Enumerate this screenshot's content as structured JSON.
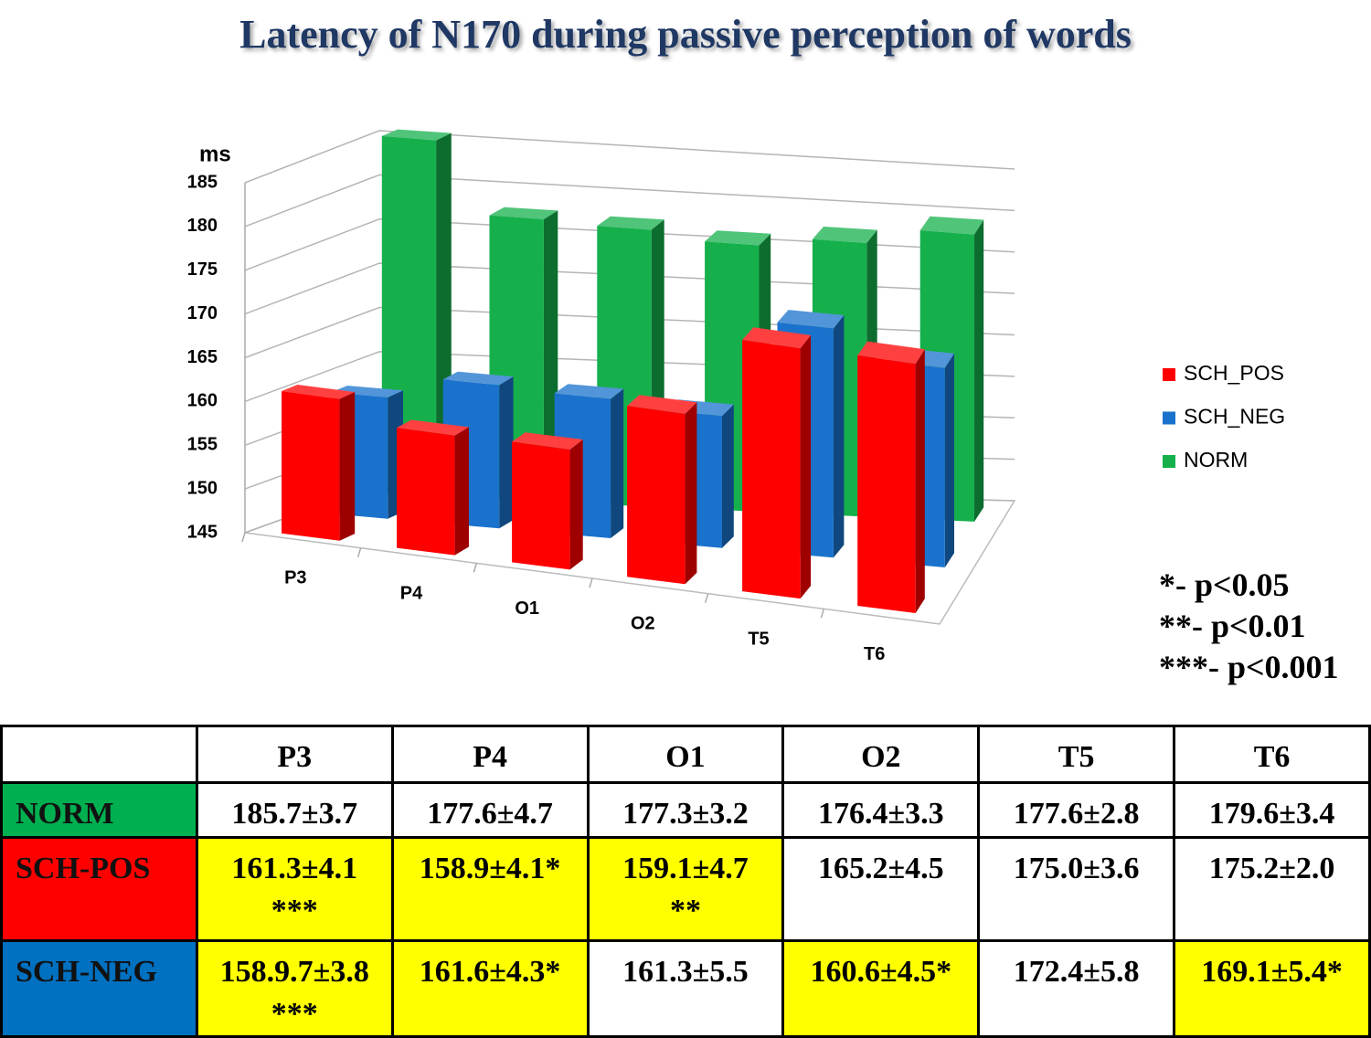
{
  "title": "Latency of N170 during passive perception of words",
  "chart_data": {
    "type": "bar3d",
    "y_label": "ms",
    "categories": [
      "P3",
      "P4",
      "O1",
      "O2",
      "T5",
      "T6"
    ],
    "series": [
      {
        "name": "SCH_POS",
        "color": "#ff0000",
        "values": [
          161.3,
          158.9,
          159.1,
          165.2,
          175.0,
          175.2
        ]
      },
      {
        "name": "SCH_NEG",
        "color": "#1a72cc",
        "values": [
          158.9,
          161.6,
          161.3,
          160.6,
          172.4,
          169.1
        ]
      },
      {
        "name": "NORM",
        "color": "#15b04c",
        "values": [
          185.7,
          177.6,
          177.3,
          176.4,
          177.6,
          179.6
        ]
      }
    ],
    "ylim": [
      145,
      185
    ],
    "yticks": [
      145,
      150,
      155,
      160,
      165,
      170,
      175,
      180,
      185
    ],
    "grid": true,
    "legend": "right"
  },
  "significance": [
    "*- p<0.05",
    "**- p<0.01",
    "***- p<0.001"
  ],
  "table": {
    "columns": [
      "P3",
      "P4",
      "O1",
      "O2",
      "T5",
      "T6"
    ],
    "rows": [
      {
        "label": "NORM",
        "color": "#00b050",
        "cells": [
          {
            "text": "185.7±3.7",
            "highlight": false
          },
          {
            "text": "177.6±4.7",
            "highlight": false
          },
          {
            "text": "177.3±3.2",
            "highlight": false
          },
          {
            "text": "176.4±3.3",
            "highlight": false
          },
          {
            "text": "177.6±2.8",
            "highlight": false
          },
          {
            "text": "179.6±3.4",
            "highlight": false
          }
        ]
      },
      {
        "label": "SCH-POS",
        "color": "#ff0000",
        "cells": [
          {
            "text": "161.3±4.1",
            "note": "***",
            "highlight": true
          },
          {
            "text": "158.9±4.1*",
            "highlight": true
          },
          {
            "text": "159.1±4.7",
            "note": "**",
            "highlight": true
          },
          {
            "text": "165.2±4.5",
            "highlight": false
          },
          {
            "text": "175.0±3.6",
            "highlight": false
          },
          {
            "text": "175.2±2.0",
            "highlight": false
          }
        ]
      },
      {
        "label": "SCH-NEG",
        "color": "#0070c0",
        "cells": [
          {
            "text": "158.9.7±3.8",
            "note": "***",
            "highlight": true
          },
          {
            "text": "161.6±4.3*",
            "highlight": true
          },
          {
            "text": "161.3±5.5",
            "highlight": false
          },
          {
            "text": "160.6±4.5*",
            "highlight": true
          },
          {
            "text": "172.4±5.8",
            "highlight": false
          },
          {
            "text": "169.1±5.4*",
            "highlight": true
          }
        ]
      }
    ]
  }
}
